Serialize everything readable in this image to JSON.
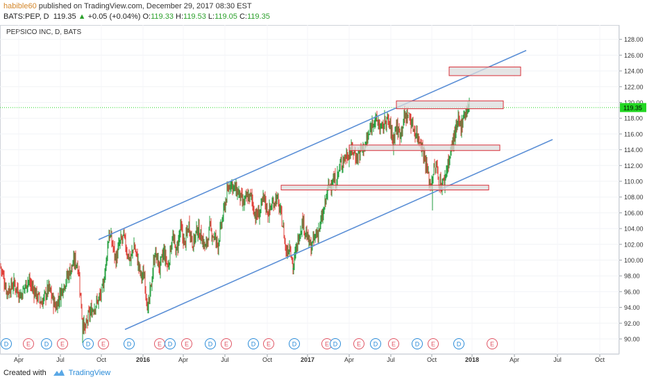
{
  "header": {
    "user": "habible60",
    "published": "published on TradingView.com, December 29, 2017 08:30 EST",
    "symbol": "BATS:PEP, D",
    "last": "119.35",
    "change": "+0.05 (+0.04%)",
    "o_label": "O:",
    "o": "119.33",
    "h_label": "H:",
    "h": "119.53",
    "l_label": "L:",
    "l": "119.05",
    "c_label": "C:",
    "c": "119.35"
  },
  "chart_data": {
    "type": "candlestick",
    "title": "PEPSICO INC, D, BATS",
    "x_tick_labels": [
      "Apr",
      "Jul",
      "Oct",
      "2016",
      "Apr",
      "Jul",
      "Oct",
      "2017",
      "Apr",
      "Jul",
      "Oct",
      "2018",
      "Apr",
      "Jul",
      "Oct"
    ],
    "y_tick_labels": [
      "128.00",
      "126.00",
      "124.00",
      "122.00",
      "120.00",
      "118.00",
      "116.00",
      "114.00",
      "112.00",
      "110.00",
      "108.00",
      "106.00",
      "104.00",
      "102.00",
      "100.00",
      "98.00",
      "96.00",
      "94.00",
      "92.00",
      "90.00"
    ],
    "ylim": [
      89,
      129
    ],
    "last_price": 119.35,
    "last_price_label": "119.35",
    "price_path": [
      [
        0,
        99.5
      ],
      [
        10,
        96
      ],
      [
        20,
        97
      ],
      [
        30,
        95.5
      ],
      [
        40,
        97.5
      ],
      [
        50,
        96
      ],
      [
        60,
        94.5
      ],
      [
        70,
        96.5
      ],
      [
        80,
        94
      ],
      [
        90,
        96.5
      ],
      [
        100,
        98.5
      ],
      [
        108,
        100
      ],
      [
        113,
        99
      ],
      [
        118,
        93
      ],
      [
        122,
        91
      ],
      [
        128,
        93
      ],
      [
        135,
        94
      ],
      [
        142,
        95
      ],
      [
        147,
        96
      ],
      [
        152,
        99
      ],
      [
        157,
        103.5
      ],
      [
        162,
        102
      ],
      [
        167,
        100
      ],
      [
        172,
        102
      ],
      [
        178,
        103
      ],
      [
        183,
        101
      ],
      [
        188,
        100
      ],
      [
        193,
        102
      ],
      [
        198,
        100
      ],
      [
        203,
        98
      ],
      [
        208,
        98
      ],
      [
        213,
        93.5
      ],
      [
        218,
        97
      ],
      [
        223,
        101
      ],
      [
        230,
        99
      ],
      [
        236,
        101
      ],
      [
        242,
        99
      ],
      [
        248,
        103
      ],
      [
        254,
        101
      ],
      [
        260,
        104
      ],
      [
        266,
        102
      ],
      [
        272,
        104.5
      ],
      [
        278,
        102
      ],
      [
        284,
        104
      ],
      [
        290,
        103
      ],
      [
        296,
        101.5
      ],
      [
        302,
        104
      ],
      [
        308,
        103
      ],
      [
        314,
        102
      ],
      [
        320,
        105
      ],
      [
        326,
        108
      ],
      [
        332,
        110
      ],
      [
        338,
        109
      ],
      [
        344,
        108.5
      ],
      [
        350,
        107
      ],
      [
        356,
        108
      ],
      [
        362,
        108
      ],
      [
        368,
        105.5
      ],
      [
        374,
        106
      ],
      [
        380,
        108
      ],
      [
        386,
        106
      ],
      [
        392,
        107
      ],
      [
        398,
        108
      ],
      [
        404,
        106
      ],
      [
        408,
        104
      ],
      [
        412,
        101
      ],
      [
        418,
        102
      ],
      [
        422,
        99
      ],
      [
        426,
        101
      ],
      [
        430,
        103
      ],
      [
        436,
        105
      ],
      [
        442,
        103
      ],
      [
        448,
        101.5
      ],
      [
        454,
        103
      ],
      [
        460,
        104
      ],
      [
        466,
        106
      ],
      [
        472,
        109
      ],
      [
        478,
        110
      ],
      [
        484,
        110
      ],
      [
        490,
        112
      ],
      [
        496,
        113
      ],
      [
        502,
        113.5
      ],
      [
        508,
        114
      ],
      [
        514,
        113
      ],
      [
        520,
        114
      ],
      [
        526,
        114.5
      ],
      [
        532,
        116
      ],
      [
        538,
        118
      ],
      [
        544,
        117.5
      ],
      [
        550,
        116.5
      ],
      [
        556,
        118
      ],
      [
        562,
        117
      ],
      [
        566,
        115
      ],
      [
        570,
        117
      ],
      [
        576,
        116
      ],
      [
        582,
        118
      ],
      [
        588,
        118.5
      ],
      [
        594,
        117
      ],
      [
        600,
        116
      ],
      [
        606,
        115
      ],
      [
        612,
        113
      ],
      [
        616,
        111
      ],
      [
        620,
        109.5
      ],
      [
        624,
        111
      ],
      [
        628,
        112
      ],
      [
        632,
        110
      ],
      [
        636,
        109.5
      ],
      [
        640,
        110
      ],
      [
        644,
        112
      ],
      [
        648,
        113
      ],
      [
        652,
        115
      ],
      [
        656,
        116
      ],
      [
        660,
        117.5
      ],
      [
        664,
        117
      ],
      [
        668,
        118.5
      ],
      [
        672,
        119
      ],
      [
        676,
        119.35
      ]
    ],
    "spikes": [
      {
        "x": 623,
        "low": 106.3
      },
      {
        "x": 119,
        "low": 89.5
      },
      {
        "x": 567,
        "low": 113.3
      },
      {
        "x": 422,
        "low": 98.8
      }
    ],
    "trend_lines": [
      {
        "x1": 142,
        "y1": 102.6,
        "x2": 758,
        "y2": 126.6
      },
      {
        "x1": 180,
        "y1": 91.2,
        "x2": 796,
        "y2": 115.3
      }
    ],
    "zones": [
      {
        "x1": 647,
        "x2": 750,
        "top": 124.5,
        "bottom": 123.4
      },
      {
        "x1": 571,
        "x2": 725,
        "top": 120.2,
        "bottom": 119.2
      },
      {
        "x1": 503,
        "x2": 720,
        "top": 114.6,
        "bottom": 113.9
      },
      {
        "x1": 405,
        "x2": 704,
        "top": 109.5,
        "bottom": 108.9
      }
    ],
    "events": [
      {
        "x": 9,
        "label": "D"
      },
      {
        "x": 41,
        "label": "E"
      },
      {
        "x": 67,
        "label": "D"
      },
      {
        "x": 90,
        "label": "E"
      },
      {
        "x": 127,
        "label": "D"
      },
      {
        "x": 149,
        "label": "E"
      },
      {
        "x": 186,
        "label": "D"
      },
      {
        "x": 230,
        "label": "E"
      },
      {
        "x": 245,
        "label": "D"
      },
      {
        "x": 269,
        "label": "E"
      },
      {
        "x": 303,
        "label": "D"
      },
      {
        "x": 326,
        "label": "E"
      },
      {
        "x": 365,
        "label": "D"
      },
      {
        "x": 387,
        "label": "E"
      },
      {
        "x": 424,
        "label": "D"
      },
      {
        "x": 471,
        "label": "E"
      },
      {
        "x": 483,
        "label": "D"
      },
      {
        "x": 517,
        "label": "E"
      },
      {
        "x": 541,
        "label": "D"
      },
      {
        "x": 567,
        "label": "E"
      },
      {
        "x": 601,
        "label": "D"
      },
      {
        "x": 624,
        "label": "E"
      },
      {
        "x": 661,
        "label": "D"
      },
      {
        "x": 709,
        "label": "E"
      }
    ],
    "colors": {
      "up": "#26a041",
      "down": "#e0403a",
      "trend": "#5b8fd6",
      "zone_fill": "#dcdcdc",
      "zone_border": "#d9303a",
      "last_price": "#22d622",
      "dividend": "#2a8bd8",
      "earnings": "#e05564"
    }
  },
  "footer": {
    "created_with": "Created with",
    "brand": "TradingView"
  }
}
